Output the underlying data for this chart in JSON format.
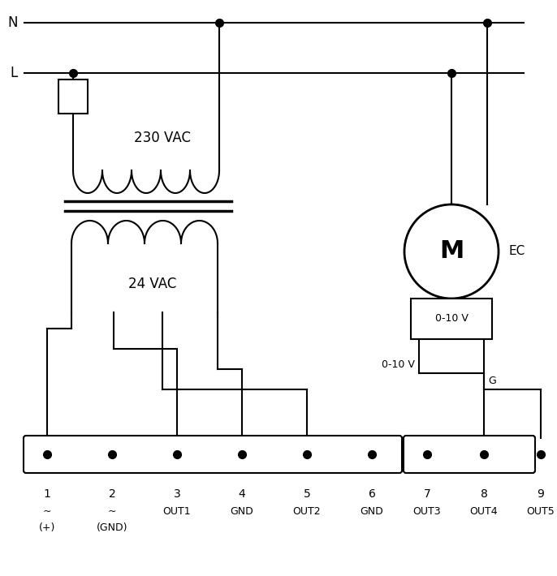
{
  "bg_color": "#ffffff",
  "line_color": "#000000",
  "lw": 1.5,
  "fig_w": 6.86,
  "fig_h": 7.1,
  "N_label": "N",
  "L_label": "L",
  "transformer_230_label": "230 VAC",
  "transformer_24_label": "24 VAC",
  "motor_label": "M",
  "motor_sublabel": "0-10 V",
  "ec_label": "EC",
  "signal_label": "0-10 V",
  "g_label": "G",
  "terminal_labels_1": [
    "1",
    "2",
    "3",
    "4",
    "5",
    "6"
  ],
  "terminal_labels_2": [
    "7",
    "8",
    "9"
  ],
  "terminal_sublabels_1": [
    "~",
    "~",
    "OUT1",
    "GND",
    "OUT2",
    "GND"
  ],
  "terminal_sublabels_2": [
    "OUT3",
    "OUT4",
    "OUT5"
  ],
  "terminal_subsublabels": [
    "(+)",
    "(GND)"
  ]
}
